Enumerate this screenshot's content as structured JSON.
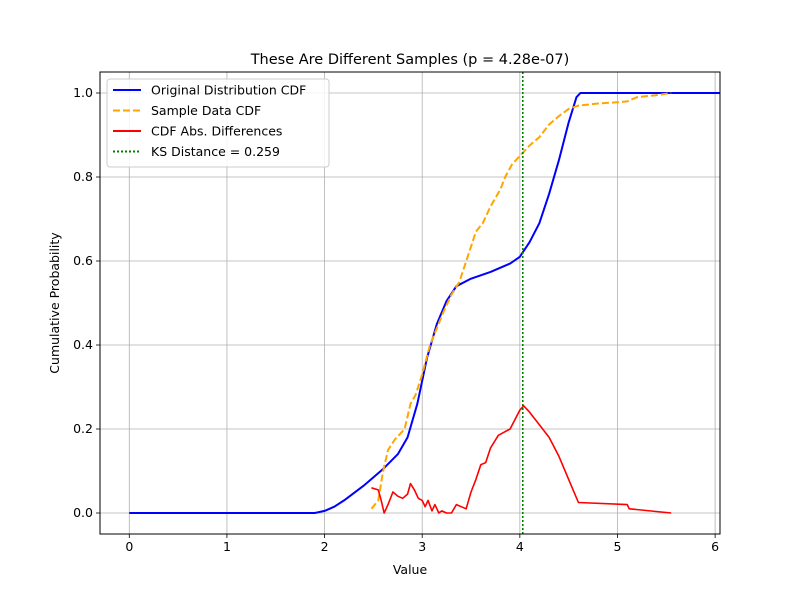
{
  "chart_data": {
    "type": "line",
    "title": "These Are Different Samples      (p = 4.28e-07)",
    "xlabel": "Value",
    "ylabel": "Cumulative Probability",
    "xlim": [
      -0.3,
      6.05
    ],
    "ylim": [
      -0.05,
      1.05
    ],
    "xticks": [
      0,
      1,
      2,
      3,
      4,
      5,
      6
    ],
    "yticks": [
      0.0,
      0.2,
      0.4,
      0.6,
      0.8,
      1.0
    ],
    "xtick_labels": [
      "0",
      "1",
      "2",
      "3",
      "4",
      "5",
      "6"
    ],
    "ytick_labels": [
      "0.0",
      "0.2",
      "0.4",
      "0.6",
      "0.8",
      "1.0"
    ],
    "grid": true,
    "legend_position": "top-left",
    "vline": {
      "x": 4.03,
      "color": "#008000",
      "style": "dotted"
    },
    "series": [
      {
        "name": "Original Distribution CDF",
        "color": "#0000ff",
        "style": "solid",
        "x": [
          0,
          1.9,
          2.0,
          2.1,
          2.2,
          2.4,
          2.6,
          2.75,
          2.85,
          2.95,
          3.05,
          3.15,
          3.25,
          3.35,
          3.5,
          3.7,
          3.9,
          4.0,
          4.1,
          4.2,
          4.3,
          4.4,
          4.5,
          4.58,
          4.62,
          4.7,
          6.05
        ],
        "y": [
          0,
          0,
          0.005,
          0.015,
          0.03,
          0.065,
          0.105,
          0.14,
          0.18,
          0.26,
          0.37,
          0.45,
          0.505,
          0.54,
          0.558,
          0.574,
          0.594,
          0.61,
          0.645,
          0.69,
          0.76,
          0.84,
          0.93,
          0.99,
          1.0,
          1.0,
          1.0
        ]
      },
      {
        "name": "Sample Data CDF",
        "color": "#ffa500",
        "style": "dashed",
        "x": [
          2.48,
          2.55,
          2.6,
          2.65,
          2.72,
          2.82,
          2.88,
          2.93,
          3.0,
          3.08,
          3.15,
          3.22,
          3.3,
          3.38,
          3.48,
          3.55,
          3.62,
          3.7,
          3.8,
          3.85,
          3.92,
          4.0,
          4.1,
          4.2,
          4.3,
          4.4,
          4.5,
          4.6,
          4.8,
          5.0,
          5.1,
          5.2,
          5.4,
          5.55
        ],
        "y": [
          0.01,
          0.03,
          0.1,
          0.15,
          0.175,
          0.2,
          0.26,
          0.28,
          0.33,
          0.4,
          0.44,
          0.48,
          0.52,
          0.55,
          0.62,
          0.67,
          0.69,
          0.73,
          0.77,
          0.8,
          0.83,
          0.85,
          0.875,
          0.895,
          0.925,
          0.945,
          0.962,
          0.97,
          0.975,
          0.978,
          0.98,
          0.99,
          0.995,
          1.0
        ]
      },
      {
        "name": "CDF Abs. Differences",
        "color": "#ff0000",
        "style": "solid",
        "x": [
          2.48,
          2.55,
          2.58,
          2.61,
          2.65,
          2.7,
          2.75,
          2.8,
          2.85,
          2.88,
          2.92,
          2.96,
          3.0,
          3.03,
          3.06,
          3.1,
          3.13,
          3.17,
          3.2,
          3.25,
          3.3,
          3.35,
          3.4,
          3.45,
          3.5,
          3.55,
          3.6,
          3.65,
          3.7,
          3.78,
          3.82,
          3.86,
          3.9,
          4.0,
          4.04,
          4.1,
          4.2,
          4.3,
          4.4,
          4.5,
          4.6,
          5.1,
          5.12,
          5.55
        ],
        "y": [
          0.06,
          0.055,
          0.03,
          0.0,
          0.02,
          0.05,
          0.04,
          0.035,
          0.045,
          0.07,
          0.055,
          0.035,
          0.03,
          0.015,
          0.03,
          0.005,
          0.02,
          0.0,
          0.005,
          0.0,
          0.0,
          0.02,
          0.015,
          0.01,
          0.05,
          0.08,
          0.115,
          0.12,
          0.155,
          0.185,
          0.19,
          0.195,
          0.2,
          0.245,
          0.255,
          0.24,
          0.21,
          0.18,
          0.135,
          0.08,
          0.025,
          0.02,
          0.01,
          0.0
        ]
      }
    ],
    "legend": [
      {
        "label": "Original Distribution CDF",
        "color": "#0000ff",
        "style": "solid"
      },
      {
        "label": "Sample Data CDF",
        "color": "#ffa500",
        "style": "dashed"
      },
      {
        "label": "CDF Abs. Differences",
        "color": "#ff0000",
        "style": "solid"
      },
      {
        "label": "KS Distance = 0.259",
        "color": "#008000",
        "style": "dotted"
      }
    ]
  }
}
